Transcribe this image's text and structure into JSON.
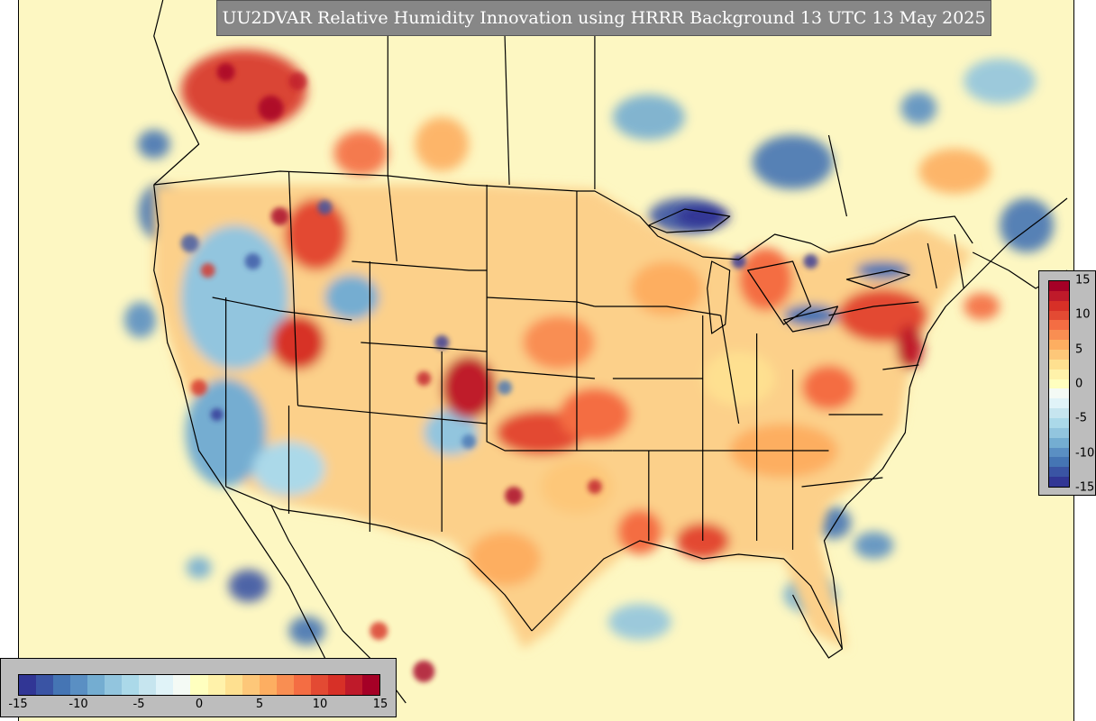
{
  "title": "UU2DVAR Relative Humidity Innovation using HRRR Background 13 UTC 13 May 2025",
  "colorbar": {
    "min": -15,
    "max": 15,
    "ticks_horizontal": [
      "-15",
      "-10",
      "-5",
      "0",
      "5",
      "10",
      "15"
    ],
    "ticks_vertical": [
      "15",
      "10",
      "5",
      "0",
      "-5",
      "-10",
      "-15"
    ],
    "colors": [
      "#313695",
      "#3a54a4",
      "#4575b4",
      "#5a8fc3",
      "#74add1",
      "#92c5de",
      "#abd9e9",
      "#c6e5ef",
      "#e0f3f8",
      "#f4faf5",
      "#ffffbf",
      "#fff2aa",
      "#fee090",
      "#fdc779",
      "#fdae61",
      "#f98e52",
      "#f46d43",
      "#e34a33",
      "#d73027",
      "#bf1a2a",
      "#a50026"
    ]
  },
  "map": {
    "region": "Continental United States",
    "background_color": "#fdf7c2"
  }
}
